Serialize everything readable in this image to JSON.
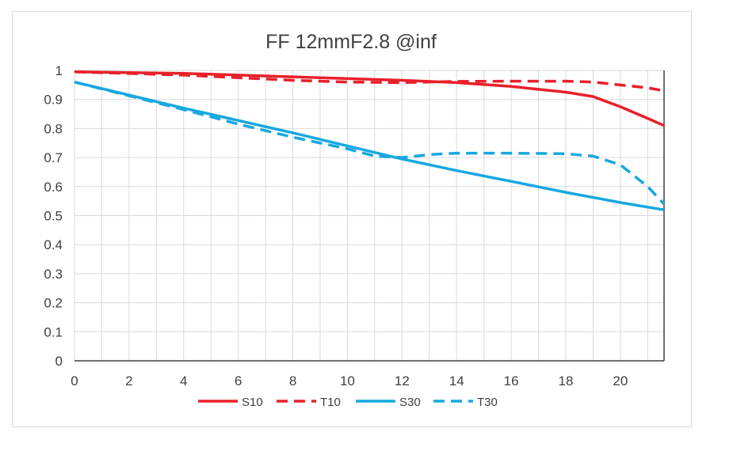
{
  "chart_data": {
    "type": "line",
    "title": "FF 12mmF2.8 @inf",
    "xlabel": "",
    "ylabel": "",
    "xlim": [
      0,
      21.6
    ],
    "ylim": [
      0,
      1
    ],
    "x_ticks": [
      "0",
      "2",
      "4",
      "6",
      "8",
      "10",
      "12",
      "14",
      "16",
      "18",
      "20"
    ],
    "y_ticks": [
      "0",
      "0.1",
      "0.2",
      "0.3",
      "0.4",
      "0.5",
      "0.6",
      "0.7",
      "0.8",
      "0.9",
      "1"
    ],
    "grid": true,
    "legend_position": "bottom",
    "series": [
      {
        "name": "S10",
        "color": "#e8202a",
        "dash": "solid",
        "points": [
          [
            0,
            0.995
          ],
          [
            4,
            0.99
          ],
          [
            8,
            0.978
          ],
          [
            12,
            0.966
          ],
          [
            14,
            0.958
          ],
          [
            16,
            0.945
          ],
          [
            18,
            0.925
          ],
          [
            19,
            0.91
          ],
          [
            20,
            0.875
          ],
          [
            21,
            0.835
          ],
          [
            21.6,
            0.81
          ]
        ]
      },
      {
        "name": "T10",
        "color": "#e8202a",
        "dash": "dashed",
        "points": [
          [
            0,
            0.995
          ],
          [
            4,
            0.984
          ],
          [
            6,
            0.975
          ],
          [
            8,
            0.966
          ],
          [
            10,
            0.96
          ],
          [
            12,
            0.958
          ],
          [
            14,
            0.962
          ],
          [
            16,
            0.963
          ],
          [
            18,
            0.963
          ],
          [
            19,
            0.96
          ],
          [
            20,
            0.95
          ],
          [
            21,
            0.94
          ],
          [
            21.6,
            0.93
          ]
        ]
      },
      {
        "name": "S30",
        "color": "#17a8e0",
        "dash": "solid",
        "points": [
          [
            0,
            0.96
          ],
          [
            4,
            0.87
          ],
          [
            8,
            0.785
          ],
          [
            10,
            0.74
          ],
          [
            12,
            0.695
          ],
          [
            14,
            0.655
          ],
          [
            16,
            0.618
          ],
          [
            18,
            0.58
          ],
          [
            20,
            0.545
          ],
          [
            21.6,
            0.52
          ]
        ]
      },
      {
        "name": "T30",
        "color": "#17a8e0",
        "dash": "dashed",
        "points": [
          [
            0,
            0.96
          ],
          [
            4,
            0.865
          ],
          [
            6,
            0.815
          ],
          [
            8,
            0.77
          ],
          [
            10,
            0.73
          ],
          [
            11,
            0.705
          ],
          [
            12,
            0.7
          ],
          [
            13,
            0.71
          ],
          [
            14,
            0.715
          ],
          [
            16,
            0.715
          ],
          [
            18,
            0.713
          ],
          [
            19,
            0.705
          ],
          [
            20,
            0.675
          ],
          [
            21,
            0.6
          ],
          [
            21.6,
            0.54
          ]
        ]
      }
    ]
  }
}
